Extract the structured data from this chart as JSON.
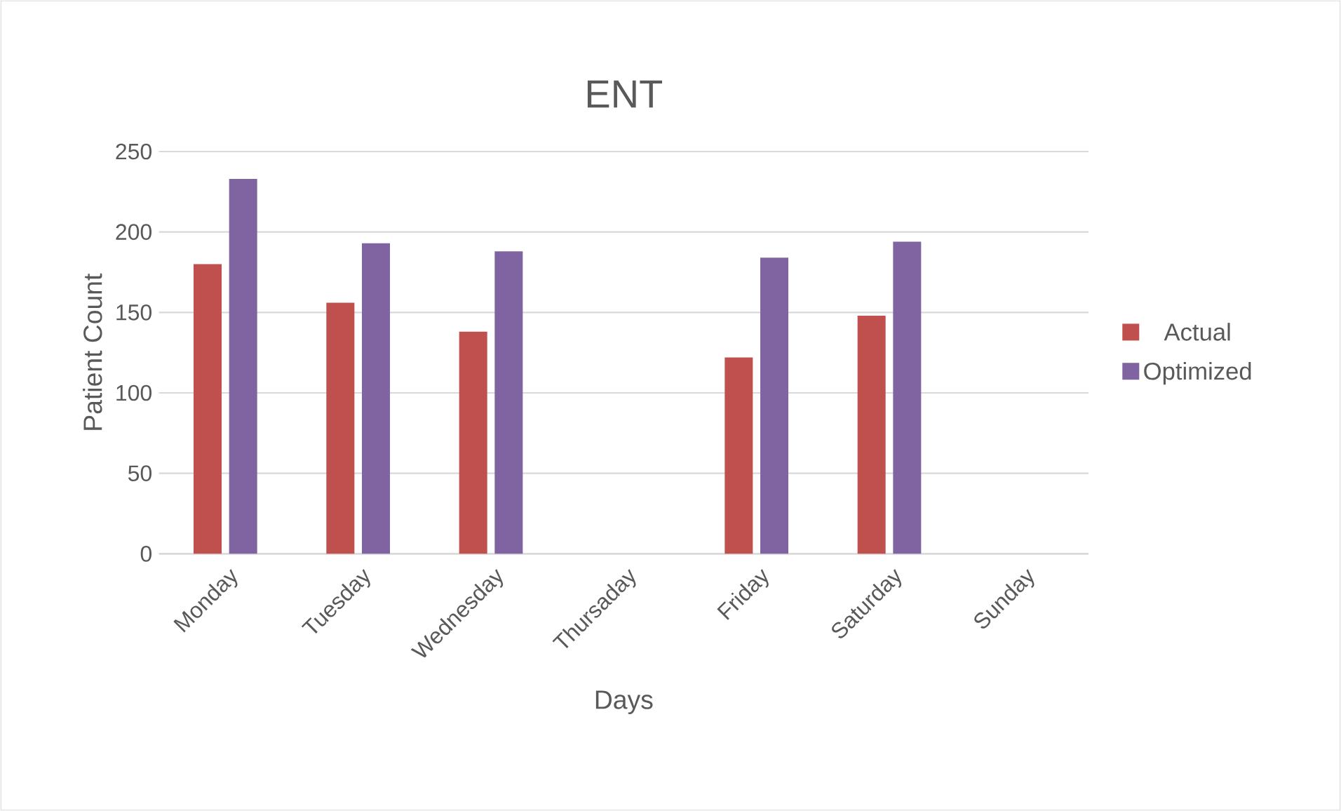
{
  "chart_data": {
    "type": "bar",
    "title": "ENT",
    "xlabel": "Days",
    "ylabel": "Patient Count",
    "categories": [
      "Monday",
      "Tuesday",
      "Wednesday",
      "Thursaday",
      "Friday",
      "Saturday",
      "Sunday"
    ],
    "series": [
      {
        "name": "Actual",
        "color": "#c0504d",
        "values": [
          180,
          156,
          138,
          null,
          122,
          148,
          null
        ]
      },
      {
        "name": "Optimized",
        "color": "#8064a2",
        "values": [
          233,
          193,
          188,
          null,
          184,
          194,
          null
        ]
      }
    ],
    "ylim": [
      0,
      250
    ],
    "yticks": [
      0,
      50,
      100,
      150,
      200,
      250
    ],
    "grid": "y",
    "legend": "right"
  }
}
